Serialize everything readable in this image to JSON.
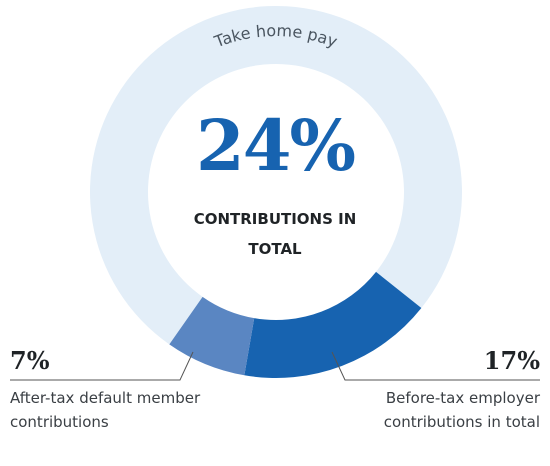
{
  "chart_data": {
    "type": "donut",
    "categories": [
      "Take home pay",
      "Before-tax employer contributions in total",
      "After-tax default member contributions"
    ],
    "values": [
      76,
      17,
      7
    ],
    "value_labels": [
      null,
      "17%",
      "7%"
    ],
    "colors": [
      "#e3eef8",
      "#1763b0",
      "#5a86c2"
    ],
    "center_value": {
      "value": 24,
      "label": "24%"
    },
    "center_text": "CONTRIBUTIONS IN TOTAL"
  }
}
